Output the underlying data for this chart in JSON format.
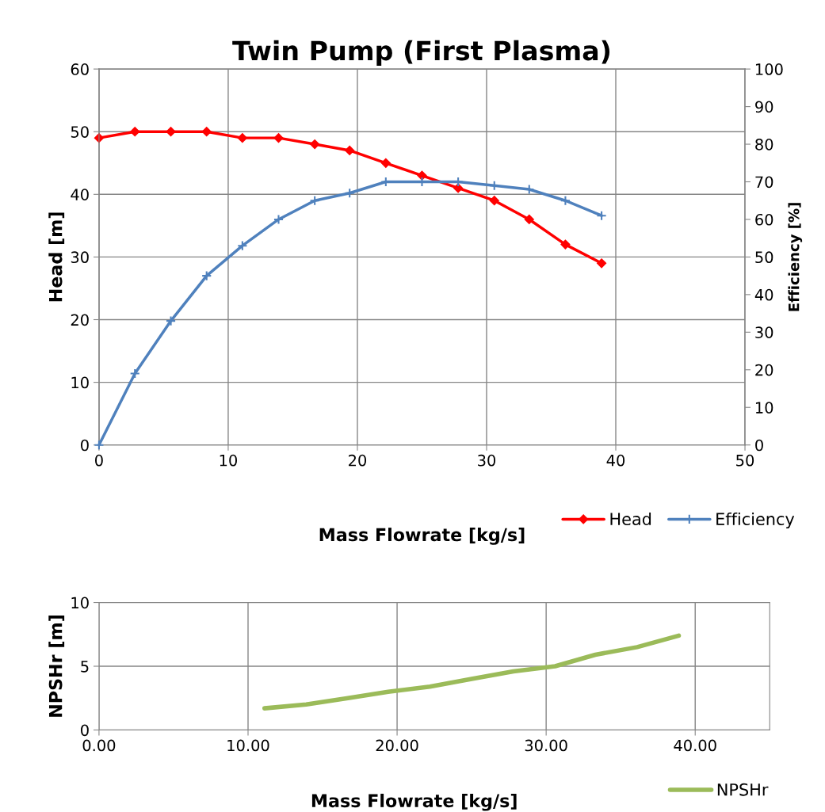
{
  "chart_data": [
    {
      "type": "line",
      "title": "Twin Pump (First Plasma)",
      "xlabel": "Mass Flowrate [kg/s]",
      "ylabel": "Head [m]",
      "y2label": "Efficiency [%]",
      "series": [
        {
          "name": "Head",
          "color": "#ff0000",
          "marker": "diamond",
          "x": [
            0,
            2.78,
            5.56,
            8.33,
            11.1,
            13.9,
            16.7,
            19.4,
            22.2,
            25,
            27.8,
            30.6,
            33.3,
            36.1,
            38.9
          ],
          "values": [
            49,
            50,
            50,
            50,
            49,
            49,
            48,
            47,
            45,
            43,
            41,
            39,
            36,
            32,
            29
          ]
        },
        {
          "name": "Efficiency",
          "color": "#4f81bd",
          "marker": "cross",
          "axis": "y2",
          "x": [
            0,
            2.78,
            5.56,
            8.33,
            11.1,
            13.9,
            16.7,
            19.4,
            22.2,
            25,
            27.8,
            30.6,
            33.3,
            36.1,
            38.9
          ],
          "values": [
            0,
            19,
            33,
            45,
            53,
            60,
            65,
            67,
            70,
            70,
            70,
            69,
            68,
            65,
            61
          ]
        }
      ],
      "xlim": [
        0,
        50
      ],
      "xticks": [
        0,
        10,
        20,
        30,
        40,
        50
      ],
      "ylim": [
        0,
        60
      ],
      "yticks": [
        0,
        10,
        20,
        30,
        40,
        50,
        60
      ],
      "y2lim": [
        0,
        100
      ],
      "y2ticks": [
        0,
        10,
        20,
        30,
        40,
        50,
        60,
        70,
        80,
        90,
        100
      ],
      "grid": true,
      "legend": "bottom"
    },
    {
      "type": "line",
      "xlabel": "Mass Flowrate [kg/s]",
      "ylabel": "NPSHr [m]",
      "series": [
        {
          "name": "NPSHr",
          "color": "#9bbb59",
          "x": [
            11.1,
            13.9,
            16.7,
            19.4,
            22.2,
            25,
            27.8,
            30.6,
            33.3,
            36.1,
            38.9
          ],
          "values": [
            1.7,
            2,
            2.5,
            3,
            3.4,
            4,
            4.6,
            5,
            5.9,
            6.5,
            7.4
          ]
        }
      ],
      "xlim": [
        0,
        45
      ],
      "xticks": [
        {
          "value": 0,
          "label": "0.00"
        },
        {
          "value": 10,
          "label": "10.00"
        },
        {
          "value": 20,
          "label": "20.00"
        },
        {
          "value": 30,
          "label": "30.00"
        },
        {
          "value": 40,
          "label": "40.00"
        }
      ],
      "ylim": [
        0,
        10
      ],
      "yticks": [
        0,
        5,
        10
      ],
      "grid": true,
      "legend": "bottom right"
    }
  ]
}
